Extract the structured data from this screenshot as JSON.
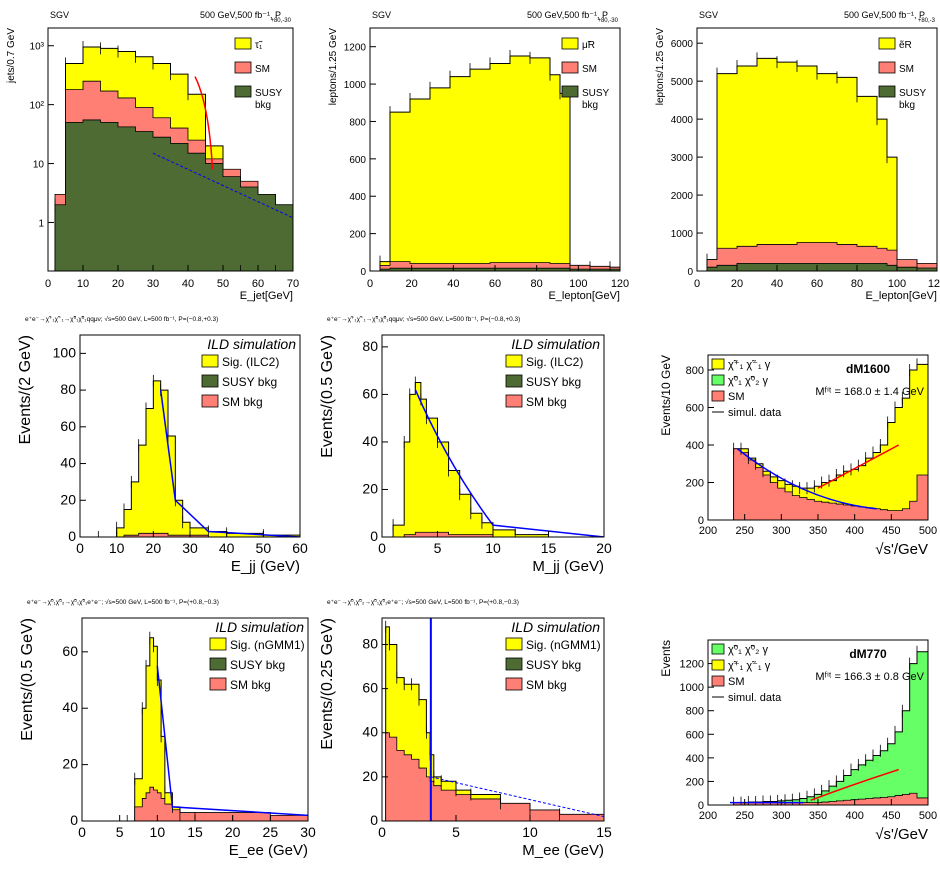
{
  "colors": {
    "signal": "#ffff00",
    "sm": "#ff7f75",
    "susy": "#4d6b32",
    "data": "#000000",
    "fit_red": "#ff0000",
    "fit_blue": "#0000ff",
    "green": "#66ff66"
  },
  "charts": [
    {
      "id": "p1",
      "type": "bar",
      "title_left": "SGV",
      "title_right": "500 GeV,500 fb⁻¹, P",
      "title_sub": "+80,-30",
      "xlabel": "E_jet[GeV]",
      "ylabel": "jets/0.7 GeV",
      "xlim": [
        0,
        70
      ],
      "ylog": true,
      "ylim": [
        0.15,
        2000
      ],
      "xticks": [
        "0",
        "10",
        "20",
        "30",
        "40",
        "50",
        "60",
        "70"
      ],
      "yticks": [
        "1",
        "10",
        "10²",
        "10³"
      ],
      "legend": [
        "τ̃₁",
        "SM",
        "SUSY",
        "bkg"
      ],
      "chart_data": {
        "x": [
          2,
          5,
          10,
          15,
          20,
          25,
          30,
          35,
          40,
          45,
          50,
          55,
          60,
          65,
          70
        ],
        "signal": [
          2,
          500,
          950,
          900,
          800,
          650,
          500,
          330,
          150,
          20,
          0,
          0,
          0,
          0,
          0
        ],
        "sm": [
          3,
          180,
          250,
          170,
          130,
          90,
          60,
          40,
          25,
          12,
          8,
          5,
          3,
          2,
          1.2
        ],
        "susy": [
          2,
          50,
          55,
          50,
          42,
          35,
          28,
          22,
          15,
          10,
          6,
          4,
          3,
          2,
          1.2
        ]
      }
    },
    {
      "id": "p2",
      "type": "bar",
      "title_left": "SGV",
      "title_right": "500 GeV,500 fb⁻¹, P",
      "title_sub": "+80,-30",
      "xlabel": "E_lepton[GeV]",
      "ylabel": "leptons/1.25 GeV",
      "xlim": [
        0,
        125
      ],
      "ylim": [
        0,
        1300
      ],
      "xticks": [
        "0",
        "20",
        "40",
        "60",
        "80",
        "100",
        "120"
      ],
      "yticks": [
        "0",
        "200",
        "400",
        "600",
        "800",
        "1000",
        "1200"
      ],
      "legend": [
        "μ̃R",
        "SM",
        "SUSY",
        "bkg"
      ],
      "chart_data": {
        "x": [
          5,
          10,
          20,
          30,
          40,
          50,
          60,
          70,
          80,
          90,
          95,
          100,
          110,
          120
        ],
        "signal": [
          50,
          850,
          920,
          980,
          1040,
          1080,
          1110,
          1150,
          1140,
          1050,
          950,
          30,
          20,
          20
        ],
        "sm": [
          30,
          50,
          40,
          40,
          40,
          40,
          45,
          45,
          45,
          40,
          40,
          30,
          25,
          20
        ],
        "susy": [
          10,
          15,
          15,
          15,
          15,
          15,
          15,
          15,
          15,
          15,
          15,
          10,
          10,
          10
        ]
      }
    },
    {
      "id": "p3",
      "type": "bar",
      "title_left": "SGV",
      "title_right": "500 GeV,500 fb⁻¹, P",
      "title_sub": "+80,-3",
      "xlabel": "E_lepton[GeV]",
      "ylabel": "leptons/1.25 GeV",
      "xlim": [
        0,
        120
      ],
      "ylim": [
        0,
        6400
      ],
      "xticks": [
        "0",
        "20",
        "40",
        "60",
        "80",
        "100",
        "120"
      ],
      "yticks": [
        "0",
        "1000",
        "2000",
        "3000",
        "4000",
        "5000",
        "6000"
      ],
      "legend": [
        "ẽR",
        "SM",
        "SUSY",
        "bkg"
      ],
      "chart_data": {
        "x": [
          5,
          10,
          20,
          30,
          40,
          50,
          60,
          70,
          80,
          90,
          95,
          100,
          110,
          120
        ],
        "signal": [
          300,
          5200,
          5400,
          5600,
          5500,
          5400,
          5200,
          5100,
          4600,
          4000,
          3000,
          200,
          150,
          100
        ],
        "sm": [
          300,
          600,
          650,
          700,
          700,
          750,
          750,
          700,
          650,
          600,
          550,
          300,
          200,
          150
        ],
        "susy": [
          100,
          150,
          200,
          200,
          200,
          200,
          200,
          200,
          200,
          200,
          150,
          100,
          80,
          60
        ]
      }
    },
    {
      "id": "p4",
      "type": "bar",
      "header": "e⁺e⁻→χ̃⁺₁χ̃⁻₁→χ̃⁰₁χ̃⁰₁qqμν; √s=500 GeV, L=500 fb⁻¹, P=(−0.8,+0.3)",
      "watermark": "ILD simulation",
      "xlabel": "E_jj (GeV)",
      "ylabel": "Events/(2 GeV)",
      "xlim": [
        0,
        60
      ],
      "ylim": [
        0,
        110
      ],
      "xticks": [
        "0",
        "10",
        "20",
        "30",
        "40",
        "50",
        "60"
      ],
      "yticks": [
        "0",
        "20",
        "40",
        "60",
        "80",
        "100"
      ],
      "legend": [
        "Sig. (ILC2)",
        "SUSY bkg",
        "SM bkg"
      ],
      "chart_data": {
        "x": [
          5,
          10,
          12,
          14,
          16,
          18,
          20,
          22,
          24,
          26,
          28,
          30,
          35,
          40,
          50,
          60
        ],
        "signal": [
          0,
          5,
          15,
          30,
          50,
          70,
          85,
          80,
          55,
          20,
          8,
          5,
          3,
          2,
          1,
          0
        ],
        "sm": [
          0,
          0,
          1,
          1,
          2,
          2,
          2,
          2,
          1,
          1,
          1,
          1,
          0,
          0,
          0,
          0
        ]
      }
    },
    {
      "id": "p5",
      "type": "bar",
      "header": "e⁺e⁻→χ̃⁺₁χ̃⁻₁→χ̃⁰₁χ̃⁰₁qqμν; √s=500 GeV, L=500 fb⁻¹, P=(−0.8,+0.3)",
      "watermark": "ILD simulation",
      "xlabel": "M_jj (GeV)",
      "ylabel": "Events/(0.5 GeV)",
      "xlim": [
        0,
        20
      ],
      "ylim": [
        0,
        85
      ],
      "xticks": [
        "0",
        "5",
        "10",
        "15",
        "20"
      ],
      "yticks": [
        "0",
        "20",
        "40",
        "60",
        "80"
      ],
      "legend": [
        "Sig. (ILC2)",
        "SUSY bkg",
        "SM bkg"
      ],
      "chart_data": {
        "x": [
          1,
          2,
          2.5,
          3,
          3.5,
          4,
          5,
          6,
          7,
          8,
          9,
          10,
          12,
          15,
          20
        ],
        "signal": [
          5,
          40,
          60,
          65,
          58,
          50,
          40,
          28,
          18,
          10,
          6,
          3,
          1,
          0,
          0
        ],
        "sm": [
          0,
          1,
          1,
          2,
          2,
          2,
          2,
          1,
          1,
          1,
          1,
          0,
          0,
          0,
          0
        ]
      }
    },
    {
      "id": "p6",
      "type": "bar",
      "label": "dM1600",
      "fit": "Mᶠⁱᵗ = 168.0 ± 1.4 GeV",
      "xlabel": "√s'/GeV",
      "ylabel": "Events/10 GeV",
      "xlim": [
        200,
        500
      ],
      "ylim": [
        0,
        880
      ],
      "xticks": [
        "200",
        "250",
        "300",
        "350",
        "400",
        "450",
        "500"
      ],
      "yticks": [
        "0",
        "200",
        "400",
        "600",
        "800"
      ],
      "legend": [
        "χ̃⁺₁ χ̃⁻₁ γ",
        "χ̃⁰₁ χ̃⁰₂ γ",
        "SM",
        "simul. data"
      ],
      "chart_data": {
        "x": [
          235,
          245,
          255,
          265,
          275,
          285,
          295,
          305,
          315,
          325,
          335,
          345,
          355,
          365,
          375,
          385,
          395,
          405,
          415,
          425,
          435,
          445,
          455,
          465,
          475,
          485
        ],
        "signal": [
          380,
          380,
          330,
          300,
          260,
          230,
          210,
          190,
          180,
          170,
          170,
          180,
          200,
          210,
          240,
          260,
          270,
          290,
          330,
          360,
          400,
          520,
          600,
          650,
          800,
          830
        ],
        "sm": [
          380,
          360,
          320,
          280,
          240,
          200,
          170,
          150,
          130,
          120,
          110,
          100,
          95,
          90,
          85,
          80,
          75,
          70,
          65,
          60,
          55,
          50,
          50,
          60,
          100,
          240
        ]
      }
    },
    {
      "id": "p7",
      "type": "bar",
      "header": "e⁺e⁻→χ̃⁰₁χ̃⁰₂→χ̃⁰₁χ̃⁰₁e⁺e⁻; √s=500 GeV, L=500 fb⁻¹, P=(+0.8,−0.3)",
      "watermark": "ILD simulation",
      "xlabel": "E_ee (GeV)",
      "ylabel": "Events/(0.5 GeV)",
      "xlim": [
        0,
        30
      ],
      "ylim": [
        0,
        72
      ],
      "xticks": [
        "0",
        "5",
        "10",
        "15",
        "20",
        "25",
        "30"
      ],
      "yticks": [
        "0",
        "20",
        "40",
        "60"
      ],
      "legend": [
        "Sig. (nGMM1)",
        "SUSY bkg",
        "SM bkg"
      ],
      "chart_data": {
        "x": [
          6,
          7,
          8,
          8.5,
          9,
          9.5,
          10,
          10.5,
          11,
          12,
          13,
          15,
          20,
          25,
          30
        ],
        "signal": [
          0,
          15,
          40,
          55,
          65,
          62,
          50,
          30,
          10,
          5,
          2,
          1,
          0,
          0,
          0
        ],
        "sm": [
          0,
          5,
          8,
          10,
          12,
          11,
          10,
          8,
          6,
          4,
          3,
          3,
          3,
          2,
          2
        ]
      }
    },
    {
      "id": "p8",
      "type": "bar",
      "header": "e⁺e⁻→χ̃⁰₁χ̃⁰₂→χ̃⁰₁χ̃⁰₁e⁺e⁻; √s=500 GeV, L=500 fb⁻¹, P=(+0.8,−0.3)",
      "watermark": "ILD simulation",
      "xlabel": "M_ee (GeV)",
      "ylabel": "Events/(0.25 GeV)",
      "xlim": [
        0,
        15
      ],
      "ylim": [
        0,
        92
      ],
      "xticks": [
        "0",
        "5",
        "10",
        "15"
      ],
      "yticks": [
        "0",
        "20",
        "40",
        "60",
        "80"
      ],
      "legend": [
        "Sig. (nGMM1)",
        "SUSY bkg",
        "SM bkg"
      ],
      "chart_data": {
        "x": [
          0.25,
          0.5,
          1,
          1.5,
          2,
          2.5,
          3,
          3.25,
          3.5,
          4,
          5,
          6,
          8,
          10,
          12,
          15
        ],
        "signal": [
          88,
          80,
          65,
          62,
          62,
          55,
          40,
          30,
          20,
          18,
          14,
          12,
          8,
          5,
          3,
          2
        ],
        "sm": [
          40,
          38,
          32,
          30,
          28,
          24,
          20,
          18,
          16,
          14,
          12,
          10,
          8,
          5,
          3,
          2
        ]
      }
    },
    {
      "id": "p9",
      "type": "bar",
      "label": "dM770",
      "fit": "Mᶠⁱᵗ = 166.3 ± 0.8 GeV",
      "xlabel": "√s'/GeV",
      "ylabel": "Events",
      "xlim": [
        200,
        500
      ],
      "ylim": [
        0,
        1400
      ],
      "xticks": [
        "200",
        "250",
        "300",
        "350",
        "400",
        "450",
        "500"
      ],
      "yticks": [
        "0",
        "200",
        "400",
        "600",
        "800",
        "1000",
        "1200"
      ],
      "legend": [
        "χ̃⁰₁ χ̃⁰₂ γ",
        "χ̃⁺₁ χ̃⁻₁ γ",
        "SM",
        "simul. data"
      ],
      "chart_data": {
        "x": [
          235,
          245,
          255,
          265,
          275,
          285,
          295,
          305,
          315,
          325,
          335,
          345,
          355,
          365,
          375,
          385,
          395,
          405,
          415,
          425,
          435,
          445,
          455,
          465,
          475,
          485
        ],
        "signal": [
          20,
          20,
          25,
          25,
          30,
          30,
          35,
          40,
          45,
          55,
          70,
          90,
          120,
          160,
          200,
          250,
          300,
          340,
          380,
          420,
          460,
          520,
          620,
          800,
          1200,
          1300
        ],
        "sm": [
          20,
          20,
          20,
          20,
          20,
          20,
          20,
          20,
          20,
          20,
          20,
          20,
          25,
          30,
          35,
          40,
          45,
          50,
          55,
          60,
          65,
          70,
          80,
          90,
          100,
          60
        ]
      }
    }
  ]
}
